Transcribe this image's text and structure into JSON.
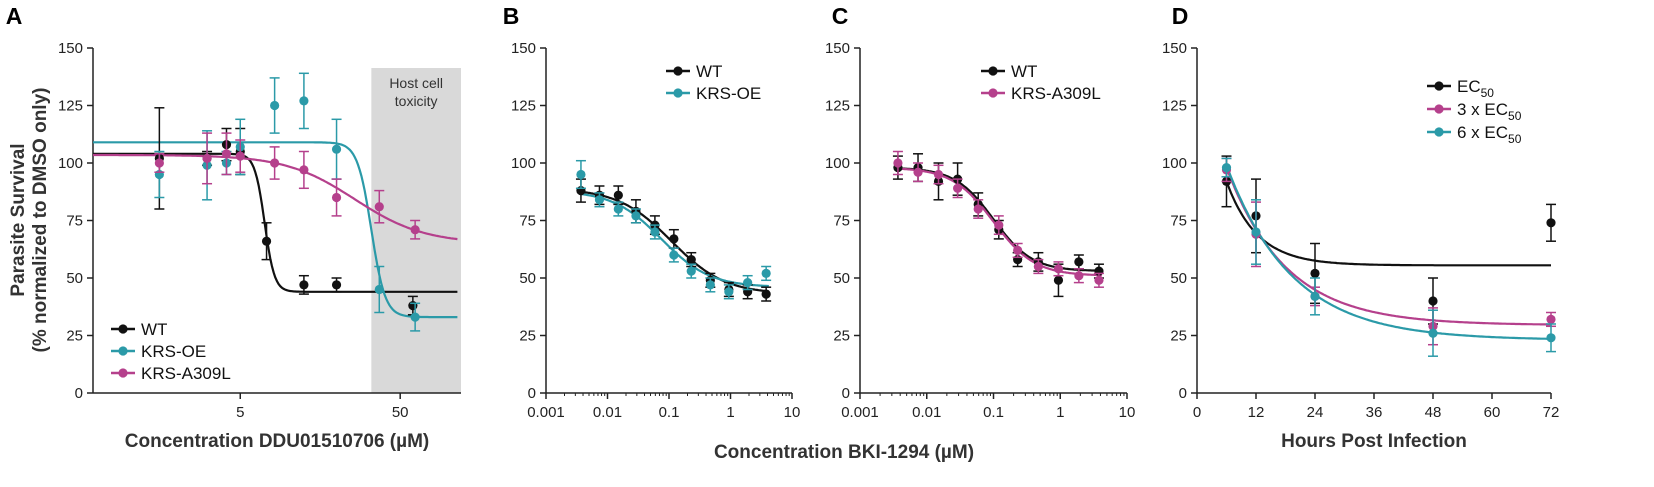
{
  "figure": {
    "shared_xlabel_BC": "Concentration BKI-1294 (µM)",
    "ylabel_line1": "Parasite Survival",
    "ylabel_line2": "(% normalized to DMSO only)"
  },
  "colors": {
    "wt": "#111111",
    "kic": "#2b9aa8",
    "mag": "#b5408c",
    "shade": "#d9d9d9"
  },
  "chart_data": [
    {
      "panel": "A",
      "type": "scatter",
      "xscale": "log",
      "xlim": [
        0.6,
        120
      ],
      "ylim": [
        0,
        150
      ],
      "xticks": [
        5,
        50
      ],
      "yticks": [
        0,
        25,
        50,
        75,
        100,
        125,
        150
      ],
      "xlabel": "Concentration DDU01510706 (µM)",
      "annotation": {
        "line1": "Host cell",
        "line2": "toxicity",
        "x_from": 33,
        "x_to": 120
      },
      "legend": [
        "WT",
        "KRS-OE",
        "KRS-A309L"
      ],
      "legend_position": "bottom-left",
      "series": [
        {
          "name": "WT",
          "color": "#111111",
          "points": [
            [
              1.56,
              102,
              22
            ],
            [
              3.1,
              102,
              3
            ],
            [
              4.1,
              108,
              7
            ],
            [
              5.0,
              105,
              10
            ],
            [
              7.3,
              66,
              8
            ],
            [
              12.5,
              47,
              4
            ],
            [
              20,
              47,
              3
            ],
            [
              60,
              38,
              4
            ]
          ],
          "fit": {
            "bottom": 44,
            "top": 104,
            "ec50": 7.1,
            "hill": 14
          }
        },
        {
          "name": "KRS-OE",
          "color": "#2b9aa8",
          "points": [
            [
              1.56,
              95,
              10
            ],
            [
              3.1,
              99,
              15
            ],
            [
              4.1,
              100,
              5
            ],
            [
              5.0,
              107,
              12
            ],
            [
              8.2,
              125,
              12
            ],
            [
              12.5,
              127,
              12
            ],
            [
              20,
              106,
              13
            ],
            [
              37,
              45,
              10
            ],
            [
              62,
              33,
              6
            ]
          ],
          "fit": {
            "bottom": 33,
            "top": 109,
            "ec50": 33,
            "hill": 10
          }
        },
        {
          "name": "KRS-A309L",
          "color": "#b5408c",
          "points": [
            [
              1.56,
              100,
              4
            ],
            [
              3.1,
              102,
              11
            ],
            [
              4.1,
              104,
              9
            ],
            [
              5.0,
              103,
              7
            ],
            [
              8.2,
              100,
              7
            ],
            [
              12.5,
              97,
              8
            ],
            [
              20,
              85,
              8
            ],
            [
              37,
              81,
              7
            ],
            [
              62,
              71,
              4
            ]
          ],
          "fit": {
            "bottom": 65,
            "top": 103.5,
            "ec50": 26,
            "hill": 2
          }
        }
      ]
    },
    {
      "panel": "B",
      "type": "scatter",
      "xscale": "log",
      "xlim": [
        0.001,
        10
      ],
      "ylim": [
        0,
        150
      ],
      "xticks": [
        0.001,
        0.01,
        0.1,
        1,
        10
      ],
      "xtick_labels": [
        "0.001",
        "0.01",
        "0.1",
        "1",
        "10"
      ],
      "yticks": [
        0,
        25,
        50,
        75,
        100,
        125,
        150
      ],
      "legend": [
        "WT",
        "KRS-OE"
      ],
      "legend_position": "top-right",
      "series": [
        {
          "name": "WT",
          "color": "#111111",
          "points": [
            [
              0.0037,
              88,
              5
            ],
            [
              0.0074,
              86,
              4
            ],
            [
              0.015,
              86,
              4
            ],
            [
              0.029,
              79,
              5
            ],
            [
              0.059,
              73,
              4
            ],
            [
              0.12,
              67,
              4
            ],
            [
              0.23,
              58,
              3
            ],
            [
              0.47,
              49,
              3
            ],
            [
              0.94,
              45,
              3
            ],
            [
              1.9,
              44,
              3
            ],
            [
              3.8,
              43,
              3
            ]
          ],
          "fit": {
            "bottom": 43,
            "top": 89,
            "ec50": 0.11,
            "hill": 1
          }
        },
        {
          "name": "KRS-OE",
          "color": "#2b9aa8",
          "points": [
            [
              0.0037,
              95,
              6
            ],
            [
              0.0074,
              84,
              3
            ],
            [
              0.015,
              80,
              3
            ],
            [
              0.029,
              77,
              3
            ],
            [
              0.059,
              70,
              3
            ],
            [
              0.12,
              60,
              3
            ],
            [
              0.23,
              53,
              3
            ],
            [
              0.47,
              47,
              3
            ],
            [
              0.94,
              44,
              3
            ],
            [
              1.9,
              48,
              3
            ],
            [
              3.8,
              52,
              3
            ]
          ],
          "fit": {
            "bottom": 46,
            "top": 88,
            "ec50": 0.075,
            "hill": 1.1
          }
        }
      ]
    },
    {
      "panel": "C",
      "type": "scatter",
      "xscale": "log",
      "xlim": [
        0.001,
        10
      ],
      "ylim": [
        0,
        150
      ],
      "xticks": [
        0.001,
        0.01,
        0.1,
        1,
        10
      ],
      "xtick_labels": [
        "0.001",
        "0.01",
        "0.1",
        "1",
        "10"
      ],
      "yticks": [
        0,
        25,
        50,
        75,
        100,
        125,
        150
      ],
      "legend": [
        "WT",
        "KRS-A309L"
      ],
      "legend_position": "top-right",
      "series": [
        {
          "name": "WT",
          "color": "#111111",
          "points": [
            [
              0.0037,
              98,
              5
            ],
            [
              0.0074,
              98,
              6
            ],
            [
              0.015,
              92,
              8
            ],
            [
              0.029,
              93,
              7
            ],
            [
              0.059,
              82,
              5
            ],
            [
              0.12,
              71,
              4
            ],
            [
              0.23,
              58,
              3
            ],
            [
              0.47,
              57,
              4
            ],
            [
              0.94,
              49,
              7
            ],
            [
              1.9,
              57,
              3
            ],
            [
              3.8,
              53,
              3
            ]
          ],
          "fit": {
            "bottom": 53,
            "top": 98,
            "ec50": 0.1,
            "hill": 1.5
          }
        },
        {
          "name": "KRS-A309L",
          "color": "#b5408c",
          "points": [
            [
              0.0037,
              100,
              5
            ],
            [
              0.0074,
              96,
              4
            ],
            [
              0.015,
              95,
              4
            ],
            [
              0.029,
              89,
              4
            ],
            [
              0.059,
              80,
              4
            ],
            [
              0.12,
              73,
              4
            ],
            [
              0.23,
              62,
              3
            ],
            [
              0.47,
              55,
              3
            ],
            [
              0.94,
              54,
              3
            ],
            [
              1.9,
              51,
              3
            ],
            [
              3.8,
              49,
              3
            ]
          ],
          "fit": {
            "bottom": 51,
            "top": 98,
            "ec50": 0.1,
            "hill": 1.4
          }
        }
      ]
    },
    {
      "panel": "D",
      "type": "scatter",
      "xscale": "linear",
      "xlim": [
        0,
        72
      ],
      "ylim": [
        0,
        150
      ],
      "xticks": [
        0,
        12,
        24,
        36,
        48,
        60,
        72
      ],
      "yticks": [
        0,
        25,
        50,
        75,
        100,
        125,
        150
      ],
      "xlabel": "Hours Post Infection",
      "legend_main": [
        "EC",
        "3 x EC",
        "6 x EC"
      ],
      "legend_sub": "50",
      "legend_position": "top-right",
      "series": [
        {
          "name": "EC50",
          "color": "#111111",
          "points": [
            [
              6,
              92,
              11
            ],
            [
              12,
              77,
              16
            ],
            [
              24,
              52,
              13
            ],
            [
              48,
              40,
              10
            ],
            [
              72,
              74,
              8
            ]
          ],
          "fit": {
            "bottom": 55.5,
            "top": 92,
            "x0": 6,
            "k": 0.16
          }
        },
        {
          "name": "3 x EC50",
          "color": "#b5408c",
          "points": [
            [
              6,
              97,
              5
            ],
            [
              12,
              69,
              14
            ],
            [
              24,
              42,
              4
            ],
            [
              48,
              29,
              8
            ],
            [
              72,
              32,
              3
            ]
          ],
          "fit": {
            "bottom": 29.5,
            "top": 98,
            "x0": 6,
            "k": 0.083
          }
        },
        {
          "name": "6 x EC50",
          "color": "#2b9aa8",
          "points": [
            [
              6,
              98,
              4
            ],
            [
              12,
              70,
              14
            ],
            [
              24,
              42,
              8
            ],
            [
              48,
              26,
              10
            ],
            [
              72,
              24,
              6
            ]
          ],
          "fit": {
            "bottom": 23,
            "top": 99,
            "x0": 6,
            "k": 0.075
          }
        }
      ]
    }
  ]
}
